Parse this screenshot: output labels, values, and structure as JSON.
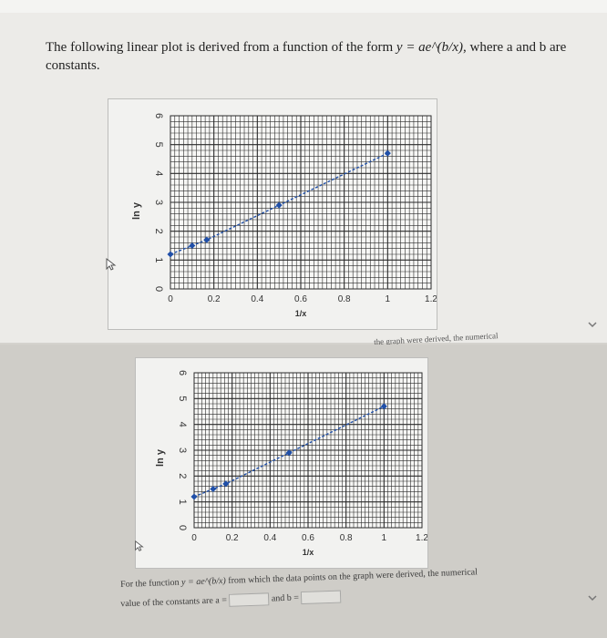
{
  "question": {
    "text_before": "The following linear plot is derived from a function of the form",
    "formula": "y = ae^(b/x)",
    "text_after": ", where a and b are constants."
  },
  "overlap_text": "the graph were derived, the numerical",
  "answer": {
    "line1_prefix": "For the function",
    "formula": "y = ae^(b/x)",
    "line1_suffix": "from which the data points on the graph were derived, the numerical",
    "line2_prefix": "value of the constants are a =",
    "and_b": "and b ="
  },
  "colors": {
    "series": "#1f4fa8",
    "grid": "#2a2a2a",
    "background": "#f7f7f5"
  },
  "chart_data": [
    {
      "type": "scatter",
      "title": "",
      "xlabel": "1/x",
      "ylabel": "ln y",
      "xlim": [
        0,
        1.2
      ],
      "ylim": [
        0,
        6
      ],
      "xticks": [
        "0",
        "0.2",
        "0.4",
        "0.6",
        "0.8",
        "1",
        "1.2"
      ],
      "yticks": [
        "0",
        "1",
        "2",
        "3",
        "4",
        "5",
        "6"
      ],
      "grid": true,
      "series": [
        {
          "x": [
            0.0,
            0.1,
            0.167,
            0.5,
            1.0
          ],
          "y": [
            1.2,
            1.5,
            1.7,
            2.9,
            4.7
          ]
        }
      ]
    },
    {
      "type": "scatter",
      "title": "",
      "xlabel": "1/x",
      "ylabel": "ln y",
      "xlim": [
        0,
        1.2
      ],
      "ylim": [
        0,
        6
      ],
      "xticks": [
        "0",
        "0.2",
        "0.4",
        "0.6",
        "0.8",
        "1",
        "1.2"
      ],
      "yticks": [
        "0",
        "1",
        "2",
        "3",
        "4",
        "5",
        "6"
      ],
      "grid": true,
      "series": [
        {
          "x": [
            0.0,
            0.1,
            0.167,
            0.5,
            1.0
          ],
          "y": [
            1.2,
            1.5,
            1.7,
            2.9,
            4.7
          ]
        }
      ]
    }
  ]
}
